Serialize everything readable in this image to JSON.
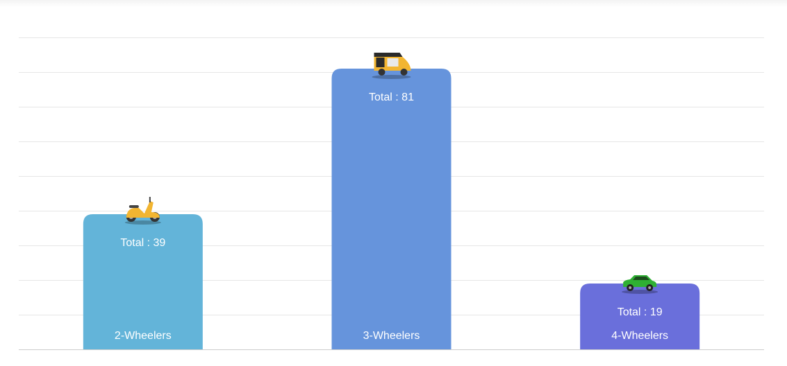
{
  "chart_data": {
    "type": "bar",
    "categories": [
      "2-Wheelers",
      "3-Wheelers",
      "4-Wheelers"
    ],
    "values": [
      39,
      81,
      19
    ],
    "total_prefix": "Total : ",
    "total_labels": [
      "Total : 39",
      "Total : 81",
      "Total : 19"
    ],
    "icons": [
      "scooter-icon",
      "auto-rickshaw-icon",
      "car-icon"
    ],
    "colors": [
      "#63b4d9",
      "#6694dc",
      "#6a6fdb"
    ],
    "gridline_color": "#e6e6e6",
    "axis_color": "#cccccc",
    "title": "",
    "xlabel": "",
    "ylabel": "",
    "ylim": [
      0,
      90
    ],
    "grid": true,
    "legend": "none"
  }
}
